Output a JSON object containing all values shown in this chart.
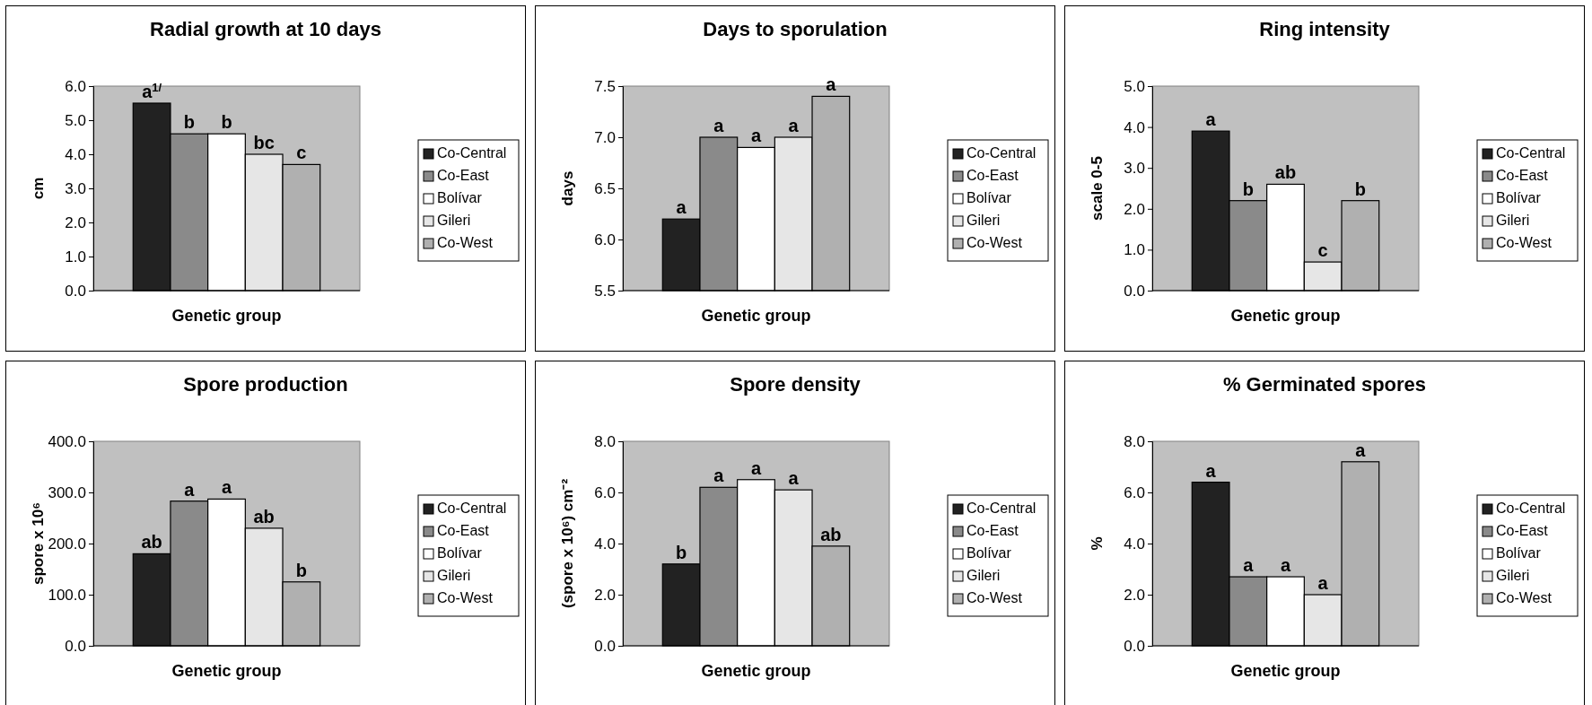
{
  "chart_data": [
    {
      "type": "bar",
      "title": "Radial growth at 10 days",
      "xlabel": "Genetic group",
      "ylabel": "cm",
      "categories": [
        null
      ],
      "ylim": [
        0,
        6
      ],
      "yticks": [
        {
          "value": 0,
          "label": "0.0"
        },
        {
          "value": 1,
          "label": "1.0"
        },
        {
          "value": 2,
          "label": "2.0"
        },
        {
          "value": 3,
          "label": "3.0"
        },
        {
          "value": 4,
          "label": "4.0"
        },
        {
          "value": 5,
          "label": "5.0"
        },
        {
          "value": 6,
          "label": "6.0"
        }
      ],
      "grid": false,
      "legend": "right",
      "annotations": [
        {
          "text": "a$^{1/}$",
          "y": 5.5
        },
        {
          "text": "b",
          "y": 4.6
        },
        {
          "text": "b",
          "y": 4.6
        },
        {
          "text": "bc",
          "y": 4.0
        },
        {
          "text": "c",
          "y": 3.7
        }
      ],
      "series": [
        {
          "name": "Co-Central",
          "color": "#222222",
          "values": [
            5.5
          ]
        },
        {
          "name": "Co-East",
          "color": "#8a8a8a",
          "values": [
            4.6
          ]
        },
        {
          "name": "Bolívar",
          "color": "#ffffff",
          "values": [
            4.6
          ]
        },
        {
          "name": "Gileri",
          "color": "#e6e6e6",
          "values": [
            4.0
          ]
        },
        {
          "name": "Co-West",
          "color": "#b0b0b0",
          "values": [
            3.7
          ]
        }
      ]
    },
    {
      "type": "bar",
      "title": "Days to sporulation",
      "xlabel": "Genetic group",
      "ylabel": "days",
      "categories": [
        null
      ],
      "ylim": [
        5.5,
        7.5
      ],
      "yticks": [
        5.5,
        {
          "value": 6,
          "label": "6.0"
        },
        6.5,
        {
          "value": 7,
          "label": "7.0"
        },
        7.5
      ],
      "grid": false,
      "legend": "right",
      "annotations": [
        {
          "text": "a",
          "y": 6.2
        },
        {
          "text": "a",
          "y": 7.0
        },
        {
          "text": "a",
          "y": 6.9
        },
        {
          "text": "a",
          "y": 7.0
        },
        {
          "text": "a",
          "y": 7.4
        }
      ],
      "series": [
        {
          "name": "Co-Central",
          "color": "#222222",
          "values": [
            6.2
          ]
        },
        {
          "name": "Co-East",
          "color": "#8a8a8a",
          "values": [
            7.0
          ]
        },
        {
          "name": "Bolívar",
          "color": "#ffffff",
          "values": [
            6.9
          ]
        },
        {
          "name": "Gileri",
          "color": "#e6e6e6",
          "values": [
            7.0
          ]
        },
        {
          "name": "Co-West",
          "color": "#b0b0b0",
          "values": [
            7.4
          ]
        }
      ]
    },
    {
      "type": "bar",
      "title": "Ring intensity",
      "xlabel": "Genetic group",
      "ylabel": "scale 0-5",
      "categories": [
        null
      ],
      "ylim": [
        0,
        5
      ],
      "yticks": [
        {
          "value": 0,
          "label": "0.0"
        },
        {
          "value": 1,
          "label": "1.0"
        },
        {
          "value": 2,
          "label": "2.0"
        },
        {
          "value": 3,
          "label": "3.0"
        },
        {
          "value": 4,
          "label": "4.0"
        },
        {
          "value": 5,
          "label": "5.0"
        }
      ],
      "grid": false,
      "legend": "right",
      "annotations": [
        {
          "text": "a",
          "y": 3.9
        },
        {
          "text": "b",
          "y": 2.2
        },
        {
          "text": "ab",
          "y": 2.6
        },
        {
          "text": "c",
          "y": 0.7
        },
        {
          "text": "b",
          "y": 2.2
        }
      ],
      "series": [
        {
          "name": "Co-Central",
          "color": "#222222",
          "values": [
            3.9
          ]
        },
        {
          "name": "Co-East",
          "color": "#8a8a8a",
          "values": [
            2.2
          ]
        },
        {
          "name": "Bolívar",
          "color": "#ffffff",
          "values": [
            2.6
          ]
        },
        {
          "name": "Gileri",
          "color": "#e6e6e6",
          "values": [
            0.7
          ]
        },
        {
          "name": "Co-West",
          "color": "#b0b0b0",
          "values": [
            2.2
          ]
        }
      ]
    },
    {
      "type": "bar",
      "title": "Spore production",
      "xlabel": "Genetic group",
      "ylabel": "spore x 10⁶",
      "categories": [
        null
      ],
      "ylim": [
        0,
        400
      ],
      "yticks": [
        {
          "value": 0,
          "label": "0.0"
        },
        {
          "value": 100,
          "label": "100.0"
        },
        {
          "value": 200,
          "label": "200.0"
        },
        {
          "value": 300,
          "label": "300.0"
        },
        {
          "value": 400,
          "label": "400.0"
        }
      ],
      "grid": false,
      "legend": "right",
      "annotations": [
        {
          "text": "ab",
          "y": 180
        },
        {
          "text": "a",
          "y": 283
        },
        {
          "text": "a",
          "y": 287
        },
        {
          "text": "ab",
          "y": 230
        },
        {
          "text": "b",
          "y": 125
        }
      ],
      "series": [
        {
          "name": "Co-Central",
          "color": "#222222",
          "values": [
            180
          ]
        },
        {
          "name": "Co-East",
          "color": "#8a8a8a",
          "values": [
            283
          ]
        },
        {
          "name": "Bolívar",
          "color": "#ffffff",
          "values": [
            287
          ]
        },
        {
          "name": "Gileri",
          "color": "#e6e6e6",
          "values": [
            230
          ]
        },
        {
          "name": "Co-West",
          "color": "#b0b0b0",
          "values": [
            125
          ]
        }
      ]
    },
    {
      "type": "bar",
      "title": "Spore density",
      "xlabel": "Genetic group",
      "ylabel": "(spore x 10⁶) cm⁻²",
      "categories": [
        null
      ],
      "ylim": [
        0,
        8
      ],
      "yticks": [
        {
          "value": 0,
          "label": "0.0"
        },
        {
          "value": 2,
          "label": "2.0"
        },
        {
          "value": 4,
          "label": "4.0"
        },
        {
          "value": 6,
          "label": "6.0"
        },
        {
          "value": 8,
          "label": "8.0"
        }
      ],
      "grid": false,
      "legend": "right",
      "annotations": [
        {
          "text": "b",
          "y": 3.2
        },
        {
          "text": "a",
          "y": 6.2
        },
        {
          "text": "a",
          "y": 6.5
        },
        {
          "text": "a",
          "y": 6.1
        },
        {
          "text": "ab",
          "y": 3.9
        }
      ],
      "series": [
        {
          "name": "Co-Central",
          "color": "#222222",
          "values": [
            3.2
          ]
        },
        {
          "name": "Co-East",
          "color": "#8a8a8a",
          "values": [
            6.2
          ]
        },
        {
          "name": "Bolívar",
          "color": "#ffffff",
          "values": [
            6.5
          ]
        },
        {
          "name": "Gileri",
          "color": "#e6e6e6",
          "values": [
            6.1
          ]
        },
        {
          "name": "Co-West",
          "color": "#b0b0b0",
          "values": [
            3.9
          ]
        }
      ]
    },
    {
      "type": "bar",
      "title": "% Germinated spores",
      "xlabel": "Genetic group",
      "ylabel": "%",
      "categories": [
        null
      ],
      "ylim": [
        0,
        8
      ],
      "yticks": [
        {
          "value": 0,
          "label": "0.0"
        },
        {
          "value": 2,
          "label": "2.0"
        },
        {
          "value": 4,
          "label": "4.0"
        },
        {
          "value": 6,
          "label": "6.0"
        },
        {
          "value": 8,
          "label": "8.0"
        }
      ],
      "grid": false,
      "legend": "right",
      "annotations": [
        {
          "text": "a",
          "y": 6.4
        },
        {
          "text": "a",
          "y": 2.7
        },
        {
          "text": "a",
          "y": 2.7
        },
        {
          "text": "a",
          "y": 2.0
        },
        {
          "text": "a",
          "y": 7.2
        }
      ],
      "series": [
        {
          "name": "Co-Central",
          "color": "#222222",
          "values": [
            6.4
          ]
        },
        {
          "name": "Co-East",
          "color": "#8a8a8a",
          "values": [
            2.7
          ]
        },
        {
          "name": "Bolívar",
          "color": "#ffffff",
          "values": [
            2.7
          ]
        },
        {
          "name": "Gileri",
          "color": "#e6e6e6",
          "values": [
            2.0
          ]
        },
        {
          "name": "Co-West",
          "color": "#b0b0b0",
          "values": [
            7.2
          ]
        }
      ]
    }
  ]
}
